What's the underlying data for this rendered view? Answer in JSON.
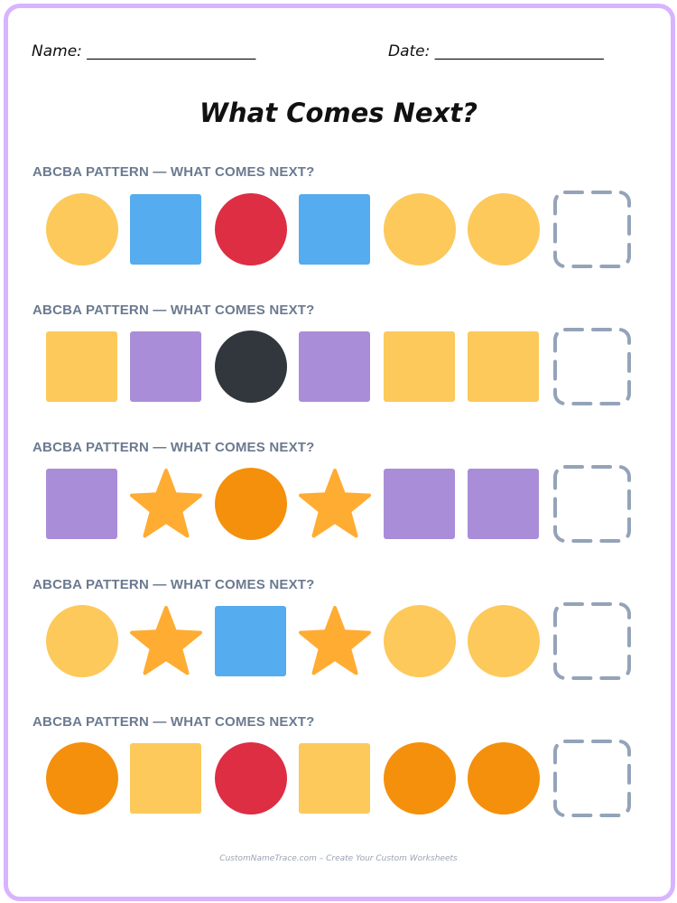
{
  "header": {
    "name_label": "Name: ______________________",
    "date_label": "Date: ______________________"
  },
  "title": "What Comes Next?",
  "colors": {
    "border": "#d8b4fe",
    "yellow": "#fcc95a",
    "blue": "#55acee",
    "red": "#dd2e44",
    "purple": "#aa8dd8",
    "black": "#31373d",
    "orange": "#f4900c",
    "star": "#ffac33",
    "placeholder": "#94a3b8"
  },
  "rows": [
    {
      "label": "ABCBA PATTERN — WHAT COMES NEXT?",
      "items": [
        {
          "shape": "circle",
          "color": "yellow"
        },
        {
          "shape": "square",
          "color": "blue"
        },
        {
          "shape": "circle",
          "color": "red"
        },
        {
          "shape": "square",
          "color": "blue"
        },
        {
          "shape": "circle",
          "color": "yellow"
        },
        {
          "shape": "circle",
          "color": "yellow"
        },
        {
          "shape": "blank",
          "color": "placeholder"
        }
      ]
    },
    {
      "label": "ABCBA PATTERN — WHAT COMES NEXT?",
      "items": [
        {
          "shape": "square",
          "color": "yellow"
        },
        {
          "shape": "square",
          "color": "purple"
        },
        {
          "shape": "circle",
          "color": "black"
        },
        {
          "shape": "square",
          "color": "purple"
        },
        {
          "shape": "square",
          "color": "yellow"
        },
        {
          "shape": "square",
          "color": "yellow"
        },
        {
          "shape": "blank",
          "color": "placeholder"
        }
      ]
    },
    {
      "label": "ABCBA PATTERN — WHAT COMES NEXT?",
      "items": [
        {
          "shape": "square",
          "color": "purple"
        },
        {
          "shape": "star",
          "color": "star"
        },
        {
          "shape": "circle",
          "color": "orange"
        },
        {
          "shape": "star",
          "color": "star"
        },
        {
          "shape": "square",
          "color": "purple"
        },
        {
          "shape": "square",
          "color": "purple"
        },
        {
          "shape": "blank",
          "color": "placeholder"
        }
      ]
    },
    {
      "label": "ABCBA PATTERN — WHAT COMES NEXT?",
      "items": [
        {
          "shape": "circle",
          "color": "yellow"
        },
        {
          "shape": "star",
          "color": "star"
        },
        {
          "shape": "square",
          "color": "blue"
        },
        {
          "shape": "star",
          "color": "star"
        },
        {
          "shape": "circle",
          "color": "yellow"
        },
        {
          "shape": "circle",
          "color": "yellow"
        },
        {
          "shape": "blank",
          "color": "placeholder"
        }
      ]
    },
    {
      "label": "ABCBA PATTERN — WHAT COMES NEXT?",
      "items": [
        {
          "shape": "circle",
          "color": "orange"
        },
        {
          "shape": "square",
          "color": "yellow"
        },
        {
          "shape": "circle",
          "color": "red"
        },
        {
          "shape": "square",
          "color": "yellow"
        },
        {
          "shape": "circle",
          "color": "orange"
        },
        {
          "shape": "circle",
          "color": "orange"
        },
        {
          "shape": "blank",
          "color": "placeholder"
        }
      ]
    }
  ],
  "footer": "CustomNameTrace.com – Create Your Custom Worksheets"
}
